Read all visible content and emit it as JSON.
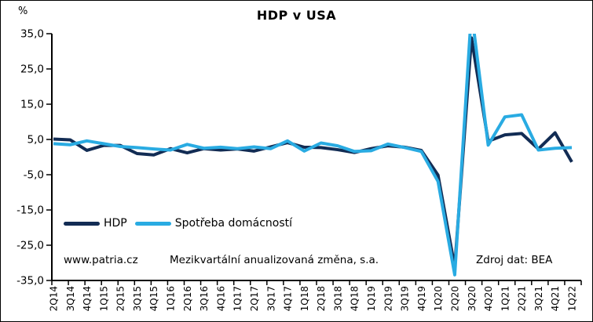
{
  "title": "HDP v USA",
  "percent_label": "%",
  "legend": {
    "items": [
      {
        "label": "HDP",
        "color": "#122c54"
      },
      {
        "label": "Spotřeba domácností",
        "color": "#29abe2"
      }
    ]
  },
  "footer": {
    "website": "www.patria.cz",
    "note": "Mezikvartální anualizovaná změna, s.a.",
    "source": "Zdroj dat: BEA"
  },
  "chart_data": {
    "type": "line",
    "title": "HDP v USA",
    "xlabel": "",
    "ylabel": "%",
    "ylim": [
      -35,
      35
    ],
    "ytick_step": 10,
    "ytick_labels": [
      "35,0",
      "25,0",
      "15,0",
      "5,0",
      "-5,0",
      "-15,0",
      "-25,0",
      "-35,0"
    ],
    "grid": false,
    "legend_position": "inside-bottom-left",
    "axis_color": "#000000",
    "categories": [
      "2Q14",
      "3Q14",
      "4Q14",
      "1Q15",
      "2Q15",
      "3Q15",
      "4Q15",
      "1Q16",
      "2Q16",
      "3Q16",
      "4Q16",
      "1Q17",
      "2Q17",
      "3Q17",
      "4Q17",
      "1Q18",
      "2Q18",
      "3Q18",
      "4Q18",
      "1Q19",
      "2Q19",
      "3Q19",
      "4Q19",
      "1Q20",
      "2Q20",
      "3Q20",
      "4Q20",
      "1Q21",
      "2Q21",
      "3Q21",
      "4Q21",
      "1Q22"
    ],
    "series": [
      {
        "name": "HDP",
        "color": "#122c54",
        "values": [
          5.1,
          4.9,
          1.9,
          3.3,
          3.3,
          1.0,
          0.6,
          2.4,
          1.2,
          2.4,
          2.0,
          2.3,
          1.7,
          2.9,
          4.1,
          2.8,
          2.7,
          2.1,
          1.3,
          2.4,
          3.2,
          2.8,
          1.9,
          -5.1,
          -31.2,
          33.8,
          4.5,
          6.3,
          6.7,
          2.3,
          6.9,
          -1.4
        ]
      },
      {
        "name": "Spotřeba domácností",
        "color": "#29abe2",
        "values": [
          3.8,
          3.5,
          4.6,
          3.8,
          3.0,
          2.7,
          2.3,
          2.0,
          3.6,
          2.5,
          2.8,
          2.4,
          2.9,
          2.4,
          4.6,
          1.7,
          4.0,
          3.2,
          1.6,
          1.8,
          3.7,
          2.7,
          1.6,
          -6.9,
          -33.4,
          41.4,
          3.4,
          11.4,
          12.0,
          2.0,
          2.5,
          2.7
        ]
      }
    ]
  }
}
